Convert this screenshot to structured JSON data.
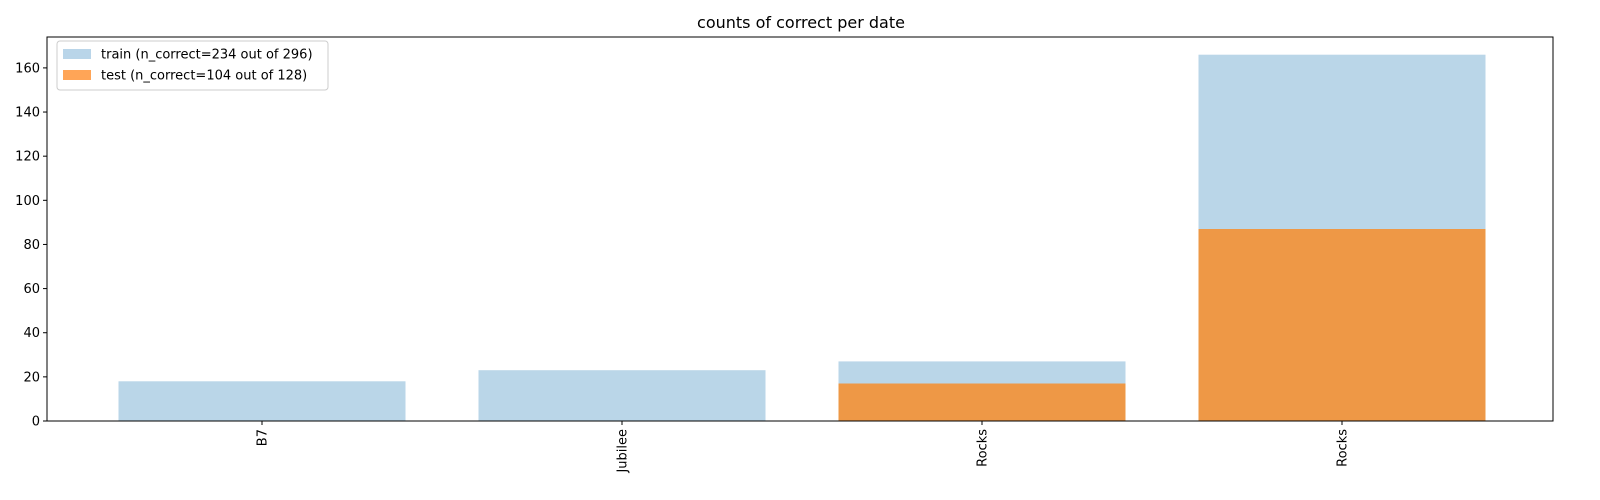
{
  "chart_data": {
    "type": "bar",
    "title": "counts of correct per date",
    "xlabel": "",
    "ylabel": "",
    "categories": [
      "B7",
      "Jubilee",
      "Rocks",
      "Rocks"
    ],
    "series": [
      {
        "name": "train (n_correct=234 out of 296)",
        "values": [
          18,
          23,
          27,
          166
        ],
        "color": "#bad6e8"
      },
      {
        "name": "test (n_correct=104 out of 128)",
        "values": [
          0,
          0,
          17,
          87
        ],
        "color": "#ee9846"
      }
    ],
    "legend_swatch_colors": [
      "#b9d5e9",
      "#ffa557"
    ],
    "ylim": [
      0,
      174
    ],
    "yticks": [
      0,
      20,
      40,
      60,
      80,
      100,
      120,
      140,
      160
    ],
    "grid": false,
    "legend_position": "top-left",
    "category_label_rotation": "vertical"
  }
}
